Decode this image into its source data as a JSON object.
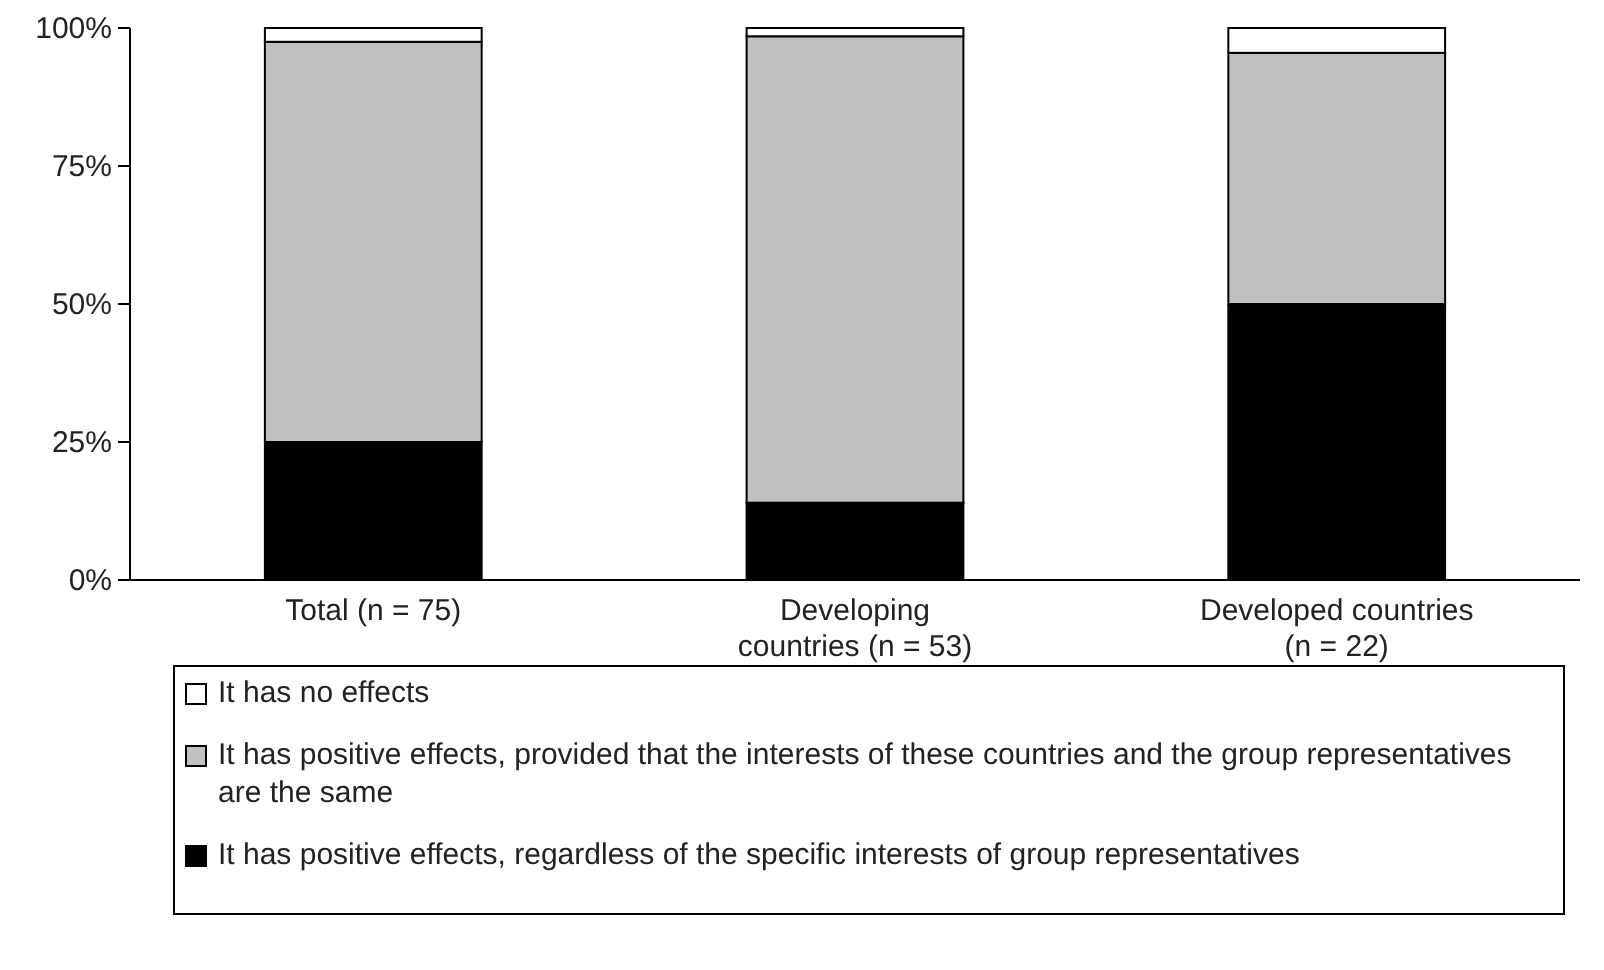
{
  "chart_data": {
    "type": "bar",
    "stacked": true,
    "categories": [
      "Total (n = 75)",
      "Developing countries (n = 53)",
      "Developed countries (n = 22)"
    ],
    "series": [
      {
        "name": "It has positive effects, regardless of the specific interests of group representatives",
        "color": "#000000",
        "values": [
          25,
          14,
          50
        ]
      },
      {
        "name": "It has positive effects, provided that the interests of these countries and the group representatives are the same",
        "color": "#c0c0c0",
        "values": [
          72.5,
          84.5,
          45.5
        ]
      },
      {
        "name": "It has no effects",
        "color": "#ffffff",
        "values": [
          2.5,
          1.5,
          4.5
        ]
      }
    ],
    "ylim": [
      0,
      100
    ],
    "yticks": [
      {
        "value": 0,
        "label": "0%"
      },
      {
        "value": 25,
        "label": "25%"
      },
      {
        "value": 50,
        "label": "50%"
      },
      {
        "value": 75,
        "label": "75%"
      },
      {
        "value": 100,
        "label": "100%"
      }
    ],
    "legend": "bottom"
  }
}
